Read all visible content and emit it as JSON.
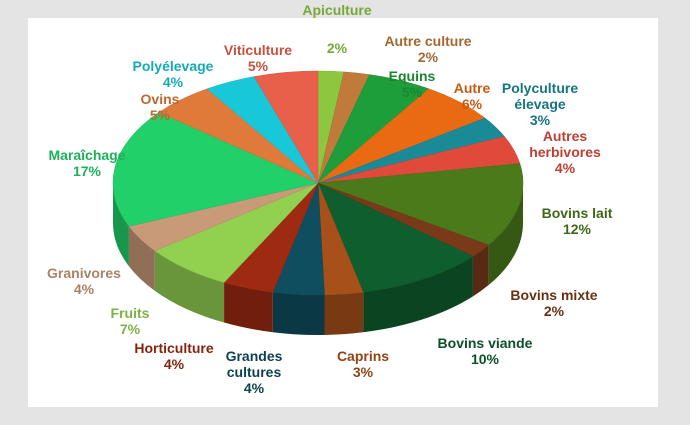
{
  "chart_data": {
    "type": "pie3d",
    "categories": [
      "Apiculture",
      "Autre culture",
      "Equins",
      "Autre",
      "Polyculture élevage",
      "Autres herbivores",
      "Bovins lait",
      "Bovins mixte",
      "Bovins viande",
      "Caprins",
      "Grandes cultures",
      "Horticulture",
      "Fruits",
      "Granivores",
      "Maraîchage",
      "Ovins",
      "Polyélevage",
      "Viticulture"
    ],
    "values": [
      2,
      2,
      5,
      6,
      3,
      4,
      12,
      2,
      10,
      3,
      4,
      4,
      7,
      4,
      17,
      5,
      4,
      5
    ],
    "value_labels": [
      "2%",
      "2%",
      "5%",
      "6%",
      "3%",
      "4%",
      "12%",
      "2%",
      "10%",
      "3%",
      "4%",
      "4%",
      "7%",
      "4%",
      "17%",
      "5%",
      "4%",
      "5%"
    ],
    "colors": [
      "#8dc63f",
      "#c07a3a",
      "#1e9e3a",
      "#ea6a14",
      "#1a8a96",
      "#e04a3a",
      "#4a7a1a",
      "#7a3a1a",
      "#0e5e2e",
      "#a8501a",
      "#0e4e5e",
      "#9e2a12",
      "#92d050",
      "#c89a78",
      "#22d06a",
      "#e07a3a",
      "#19c8d8",
      "#e8604a"
    ]
  }
}
